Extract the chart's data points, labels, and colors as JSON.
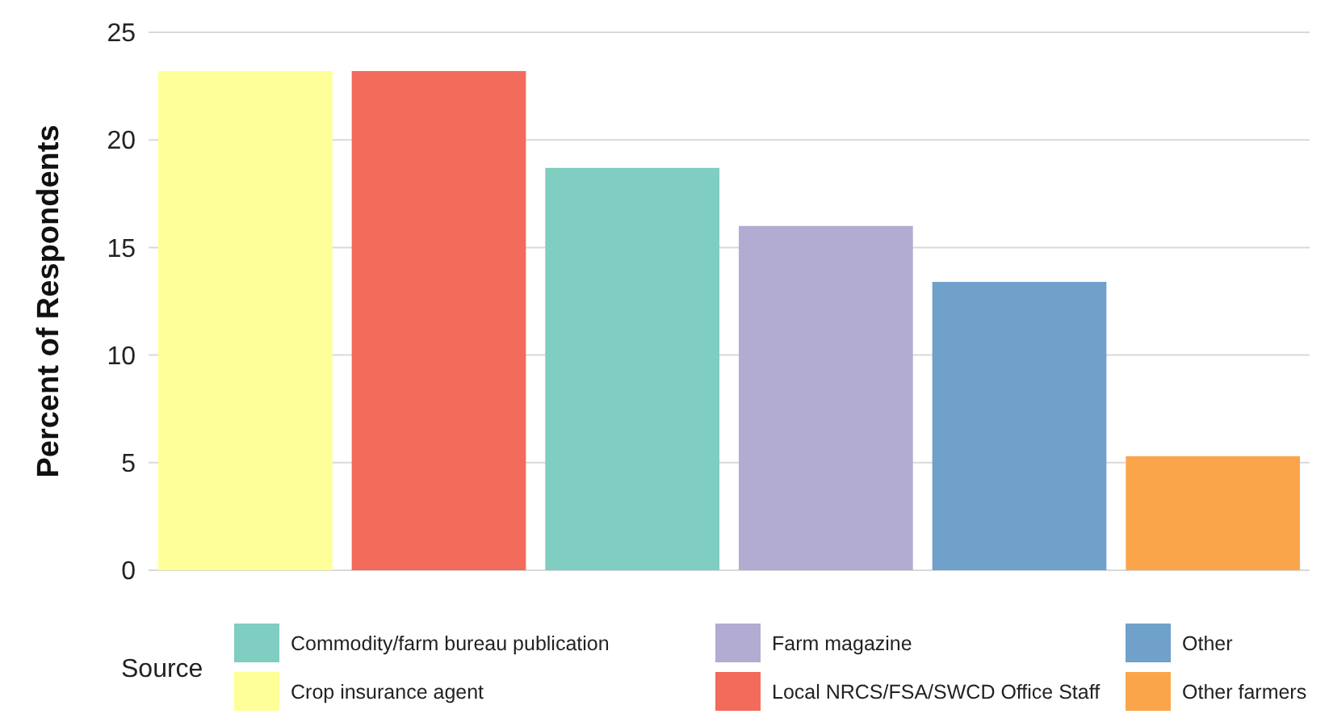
{
  "chart_data": {
    "type": "bar",
    "ylabel": "Percent of Respondents",
    "legend_title": "Source",
    "categories": [
      null,
      null,
      null,
      null,
      null,
      null
    ],
    "series": [
      {
        "name": "Commodity/farm bureau publication",
        "color": "#80cdc1",
        "values": [
          null,
          null,
          18.7,
          null,
          null,
          null
        ]
      },
      {
        "name": "Crop insurance agent",
        "color": "#ffff99",
        "values": [
          23.2,
          null,
          null,
          null,
          null,
          null
        ]
      },
      {
        "name": "Farm magazine",
        "color": "#b2abd2",
        "values": [
          null,
          null,
          null,
          16.0,
          null,
          null
        ]
      },
      {
        "name": "Local NRCS/FSA/SWCD Office Staff",
        "color": "#f26b5b",
        "values": [
          null,
          23.2,
          null,
          null,
          null,
          null
        ]
      },
      {
        "name": "Other",
        "color": "#6fa1cb",
        "values": [
          null,
          null,
          null,
          null,
          13.4,
          null
        ]
      },
      {
        "name": "Other farmers",
        "color": "#fba54b",
        "values": [
          null,
          null,
          null,
          null,
          null,
          5.3
        ]
      }
    ],
    "ylim": [
      0,
      25
    ],
    "yticks": [
      0,
      5,
      10,
      15,
      20,
      25
    ],
    "grid": "y",
    "legend": "bottom"
  }
}
